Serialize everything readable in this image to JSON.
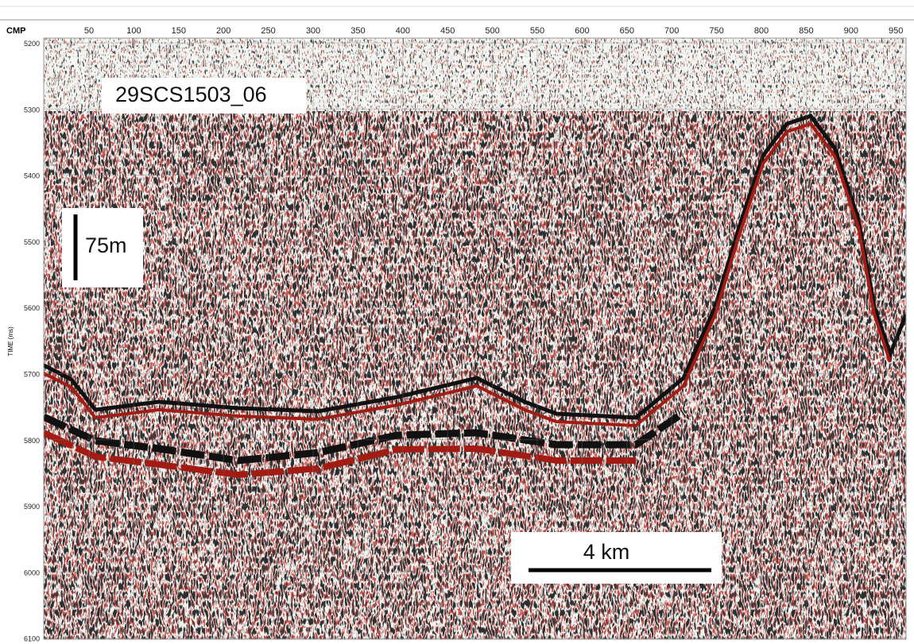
{
  "x_axis": {
    "label": "CMP",
    "ticks": [
      50,
      100,
      150,
      200,
      250,
      300,
      350,
      400,
      450,
      500,
      550,
      600,
      650,
      700,
      750,
      800,
      850,
      900,
      950
    ]
  },
  "y_axis": {
    "label": "TIME (ms)",
    "ticks": [
      5200,
      5300,
      5400,
      5500,
      5600,
      5700,
      5800,
      5900,
      6000,
      6100
    ]
  },
  "annotations": {
    "line_name": "29SCS1503_06",
    "vertical_scale": "75m",
    "horizontal_scale": "4 km"
  }
}
